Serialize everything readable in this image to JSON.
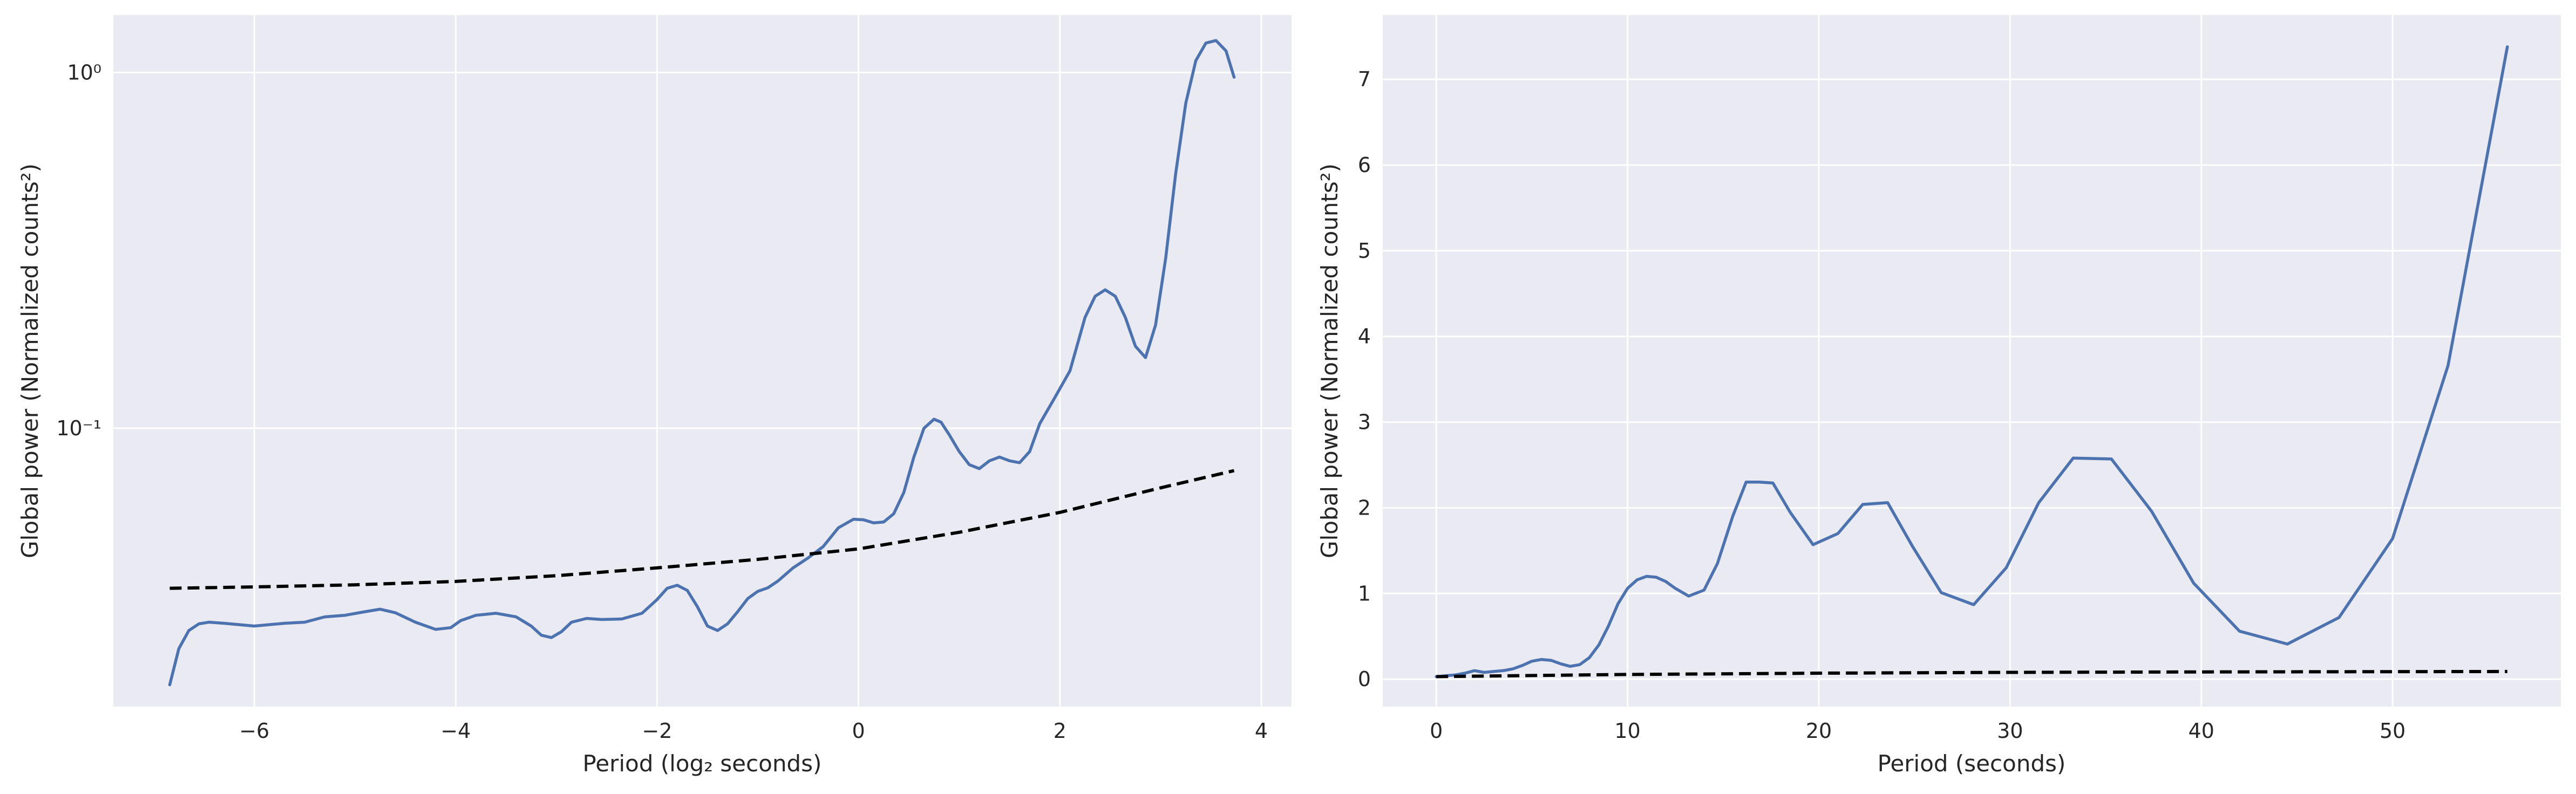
{
  "chart_data": [
    {
      "type": "line",
      "title": "",
      "xlabel": "Period (log₂ seconds)",
      "ylabel": "Global power (Normalized counts²)",
      "yscale": "log",
      "xlim": [
        -7.4,
        4.3
      ],
      "ylim": [
        0.0165,
        1.45
      ],
      "grid": true,
      "x_ticks": [
        -6,
        -4,
        -2,
        0,
        2,
        4
      ],
      "x_tick_labels": [
        "−6",
        "−4",
        "−2",
        "0",
        "2",
        "4"
      ],
      "y_ticks": [
        0.1,
        1
      ],
      "y_tick_labels": [
        "10⁻¹",
        "10⁰"
      ],
      "series": [
        {
          "style": "solid",
          "color": "#4c72b0",
          "x": [
            -6.84,
            -6.75,
            -6.65,
            -6.55,
            -6.45,
            -6.3,
            -6.0,
            -5.7,
            -5.5,
            -5.3,
            -5.1,
            -4.9,
            -4.75,
            -4.6,
            -4.4,
            -4.2,
            -4.05,
            -3.95,
            -3.8,
            -3.6,
            -3.4,
            -3.25,
            -3.15,
            -3.05,
            -2.95,
            -2.85,
            -2.7,
            -2.55,
            -2.35,
            -2.15,
            -2.0,
            -1.9,
            -1.8,
            -1.7,
            -1.6,
            -1.5,
            -1.4,
            -1.3,
            -1.2,
            -1.1,
            -1.0,
            -0.9,
            -0.8,
            -0.65,
            -0.5,
            -0.35,
            -0.2,
            -0.05,
            0.05,
            0.15,
            0.25,
            0.35,
            0.45,
            0.55,
            0.65,
            0.75,
            0.82,
            0.9,
            1.0,
            1.1,
            1.2,
            1.3,
            1.4,
            1.5,
            1.6,
            1.7,
            1.8,
            1.95,
            2.1,
            2.25,
            2.35,
            2.45,
            2.55,
            2.65,
            2.75,
            2.85,
            2.95,
            3.05,
            3.15,
            3.25,
            3.35,
            3.45,
            3.55,
            3.65,
            3.73
          ],
          "y": [
            0.019,
            0.024,
            0.027,
            0.0282,
            0.0285,
            0.0283,
            0.0278,
            0.0283,
            0.0285,
            0.0295,
            0.0298,
            0.0305,
            0.031,
            0.0303,
            0.0285,
            0.0272,
            0.0275,
            0.0288,
            0.0298,
            0.0302,
            0.0295,
            0.0278,
            0.0262,
            0.0258,
            0.0268,
            0.0285,
            0.0292,
            0.029,
            0.0291,
            0.0302,
            0.033,
            0.0355,
            0.0362,
            0.035,
            0.0315,
            0.0278,
            0.027,
            0.0282,
            0.0305,
            0.0332,
            0.0348,
            0.0356,
            0.0372,
            0.0405,
            0.0432,
            0.0465,
            0.0525,
            0.0555,
            0.0553,
            0.0542,
            0.0545,
            0.0575,
            0.066,
            0.083,
            0.1,
            0.106,
            0.104,
            0.096,
            0.086,
            0.079,
            0.077,
            0.081,
            0.083,
            0.081,
            0.08,
            0.086,
            0.103,
            0.122,
            0.145,
            0.205,
            0.235,
            0.245,
            0.235,
            0.205,
            0.17,
            0.158,
            0.195,
            0.3,
            0.52,
            0.82,
            1.08,
            1.21,
            1.23,
            1.15,
            0.97
          ]
        },
        {
          "style": "dashed",
          "color": "#000000",
          "x": [
            -6.84,
            -6,
            -5,
            -4,
            -3,
            -2,
            -1,
            0,
            1,
            2,
            3,
            3.73
          ],
          "y": [
            0.0355,
            0.0358,
            0.0363,
            0.0371,
            0.0385,
            0.0405,
            0.0428,
            0.0458,
            0.051,
            0.058,
            0.068,
            0.076
          ]
        }
      ]
    },
    {
      "type": "line",
      "title": "",
      "xlabel": "Period (seconds)",
      "ylabel": "Global power (Normalized counts²)",
      "yscale": "linear",
      "xlim": [
        -2.8,
        58.8
      ],
      "ylim": [
        -0.32,
        7.75
      ],
      "grid": true,
      "x_ticks": [
        0,
        10,
        20,
        30,
        40,
        50
      ],
      "x_tick_labels": [
        "0",
        "10",
        "20",
        "30",
        "40",
        "50"
      ],
      "y_ticks": [
        0,
        1,
        2,
        3,
        4,
        5,
        6,
        7
      ],
      "y_tick_labels": [
        "0",
        "1",
        "2",
        "3",
        "4",
        "5",
        "6",
        "7"
      ],
      "series": [
        {
          "style": "solid",
          "color": "#4c72b0",
          "x": [
            0.0,
            0.5,
            1.0,
            1.5,
            2.0,
            2.5,
            3.0,
            3.5,
            4.0,
            4.5,
            5.0,
            5.5,
            6.0,
            6.5,
            7.0,
            7.5,
            8.0,
            8.5,
            9.0,
            9.5,
            10.0,
            10.5,
            11.0,
            11.5,
            12.0,
            12.5,
            13.2,
            14.0,
            14.7,
            15.5,
            16.2,
            16.9,
            17.6,
            18.5,
            19.7,
            21.0,
            22.3,
            23.6,
            24.9,
            26.4,
            28.1,
            29.8,
            31.5,
            33.3,
            35.3,
            37.4,
            39.6,
            42.0,
            44.5,
            47.2,
            50.0,
            52.9,
            56.0
          ],
          "y": [
            0.03,
            0.04,
            0.05,
            0.07,
            0.1,
            0.08,
            0.09,
            0.1,
            0.12,
            0.16,
            0.21,
            0.23,
            0.22,
            0.18,
            0.15,
            0.17,
            0.25,
            0.4,
            0.62,
            0.88,
            1.06,
            1.16,
            1.2,
            1.19,
            1.14,
            1.06,
            0.97,
            1.04,
            1.35,
            1.9,
            2.3,
            2.3,
            2.29,
            1.95,
            1.57,
            1.7,
            2.04,
            2.06,
            1.55,
            1.01,
            0.87,
            1.3,
            2.06,
            2.58,
            2.57,
            1.96,
            1.12,
            0.56,
            0.41,
            0.72,
            1.64,
            3.66,
            7.38
          ]
        },
        {
          "style": "dashed",
          "color": "#000000",
          "x": [
            0,
            10,
            20,
            30,
            40,
            50,
            56
          ],
          "y": [
            0.03,
            0.055,
            0.07,
            0.08,
            0.085,
            0.088,
            0.09
          ]
        }
      ]
    }
  ]
}
